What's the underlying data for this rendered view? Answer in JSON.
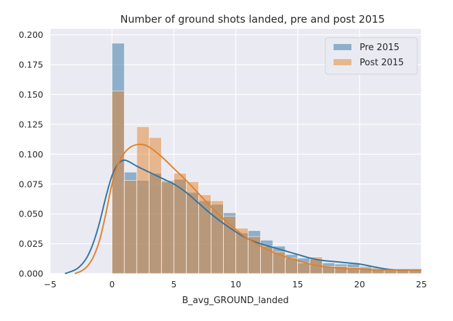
{
  "chart_data": {
    "type": "histogram-kde",
    "title": "Number of ground shots landed, pre and post 2015",
    "xlabel": "B_avg_GROUND_landed",
    "ylabel": "",
    "xlim": [
      -5,
      25
    ],
    "ylim": [
      0,
      0.205
    ],
    "xticks": [
      "−5",
      "0",
      "5",
      "10",
      "15",
      "20",
      "25"
    ],
    "xtick_values": [
      -5,
      0,
      5,
      10,
      15,
      20,
      25
    ],
    "yticks": [
      "0.000",
      "0.025",
      "0.050",
      "0.075",
      "0.100",
      "0.125",
      "0.150",
      "0.175",
      "0.200"
    ],
    "ytick_values": [
      0,
      0.025,
      0.05,
      0.075,
      0.1,
      0.125,
      0.15,
      0.175,
      0.2
    ],
    "grid": true,
    "background": "#eaeaf2",
    "legend_position": "top-right",
    "bin_width": 1,
    "bin_start": 0,
    "series": [
      {
        "name": "Pre 2015",
        "color": "#3274a1",
        "bar_color": "#92b5d2",
        "hist": [
          0.193,
          0.085,
          0.078,
          0.084,
          0.078,
          0.079,
          0.068,
          0.061,
          0.058,
          0.051,
          0.034,
          0.036,
          0.028,
          0.023,
          0.016,
          0.013,
          0.012,
          0.009,
          0.008,
          0.008,
          0.006,
          0.005,
          0.004,
          0.004,
          0.003
        ],
        "kde_x": [
          -3.8,
          -3,
          -2.5,
          -2,
          -1.5,
          -1,
          -0.5,
          0,
          0.5,
          1,
          1.5,
          2,
          3,
          4,
          5,
          6,
          7,
          8,
          9,
          10,
          11,
          12,
          13,
          14,
          15,
          16,
          17,
          18,
          19,
          20,
          21,
          22,
          23,
          24,
          25
        ],
        "kde_y": [
          0.0,
          0.003,
          0.007,
          0.014,
          0.026,
          0.043,
          0.064,
          0.082,
          0.092,
          0.095,
          0.093,
          0.09,
          0.085,
          0.08,
          0.075,
          0.068,
          0.059,
          0.05,
          0.042,
          0.035,
          0.029,
          0.025,
          0.022,
          0.019,
          0.016,
          0.013,
          0.011,
          0.01,
          0.009,
          0.008,
          0.006,
          0.004,
          0.003,
          0.003,
          0.003
        ]
      },
      {
        "name": "Post 2015",
        "color": "#e1812c",
        "bar_color": "#f4b889",
        "hist": [
          0.153,
          0.078,
          0.123,
          0.114,
          0.077,
          0.084,
          0.077,
          0.066,
          0.061,
          0.048,
          0.038,
          0.031,
          0.023,
          0.018,
          0.013,
          0.009,
          0.014,
          0.006,
          0.006,
          0.005,
          0.005,
          0.004,
          0.004,
          0.003,
          0.003
        ],
        "kde_x": [
          -3,
          -2.5,
          -2,
          -1.5,
          -1,
          -0.5,
          0,
          0.5,
          1,
          1.5,
          2,
          2.5,
          3,
          4,
          5,
          6,
          7,
          8,
          9,
          10,
          11,
          12,
          13,
          14,
          15,
          16,
          17,
          18,
          19,
          20,
          21,
          22,
          23,
          24,
          25
        ],
        "kde_y": [
          0.0,
          0.002,
          0.006,
          0.014,
          0.028,
          0.05,
          0.075,
          0.092,
          0.101,
          0.106,
          0.108,
          0.108,
          0.106,
          0.098,
          0.088,
          0.078,
          0.067,
          0.056,
          0.046,
          0.037,
          0.029,
          0.023,
          0.018,
          0.014,
          0.011,
          0.008,
          0.006,
          0.005,
          0.004,
          0.004,
          0.003,
          0.003,
          0.003,
          0.003,
          0.003
        ]
      }
    ]
  }
}
